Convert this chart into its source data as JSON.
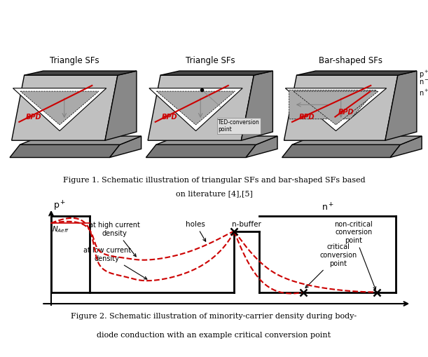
{
  "fig1_caption_line1": "Figure 1. Schematic illustration of triangular SFs and bar-shaped SFs based",
  "fig1_caption_line2": "on literature [4],[5]",
  "fig2_caption_line1": "Figure 2. Schematic illustration of minority-carrier density during body-",
  "fig2_caption_line2": "diode conduction with an example critical conversion point",
  "bg_color": "#ffffff",
  "box1_title": "Triangle SFs",
  "box2_title": "Triangle SFs",
  "box3_title": "Bar-shaped SFs",
  "BPD_color": "#cc0000",
  "dashed_line_color": "#cc0000",
  "dark_top": "#444444",
  "mid_gray": "#888888",
  "light_gray": "#c0c0c0",
  "white_tri": "#ffffff",
  "dotted_gray": "#aaaaaa",
  "base_dark": "#777777",
  "base_light": "#999999"
}
